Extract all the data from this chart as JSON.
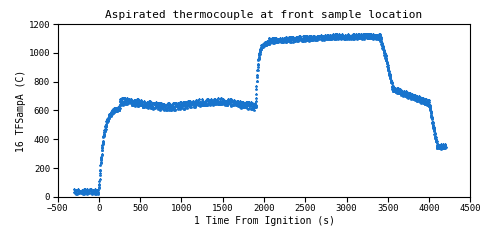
{
  "title": "Aspirated thermocouple at front sample location",
  "xlabel": "1 Time From Ignition (s)",
  "ylabel": "16 TFSampA (C)",
  "xlim": [
    -500,
    4500
  ],
  "ylim": [
    0,
    1200
  ],
  "xticks": [
    -500,
    0,
    500,
    1000,
    1500,
    2000,
    2500,
    3000,
    3500,
    4000,
    4500
  ],
  "yticks": [
    0,
    200,
    400,
    600,
    800,
    1000,
    1200
  ],
  "marker_color": "#1874CD",
  "marker": "*",
  "markersize": 1.8,
  "title_fontsize": 8,
  "label_fontsize": 7,
  "tick_fontsize": 6.5,
  "font_family": "monospace"
}
